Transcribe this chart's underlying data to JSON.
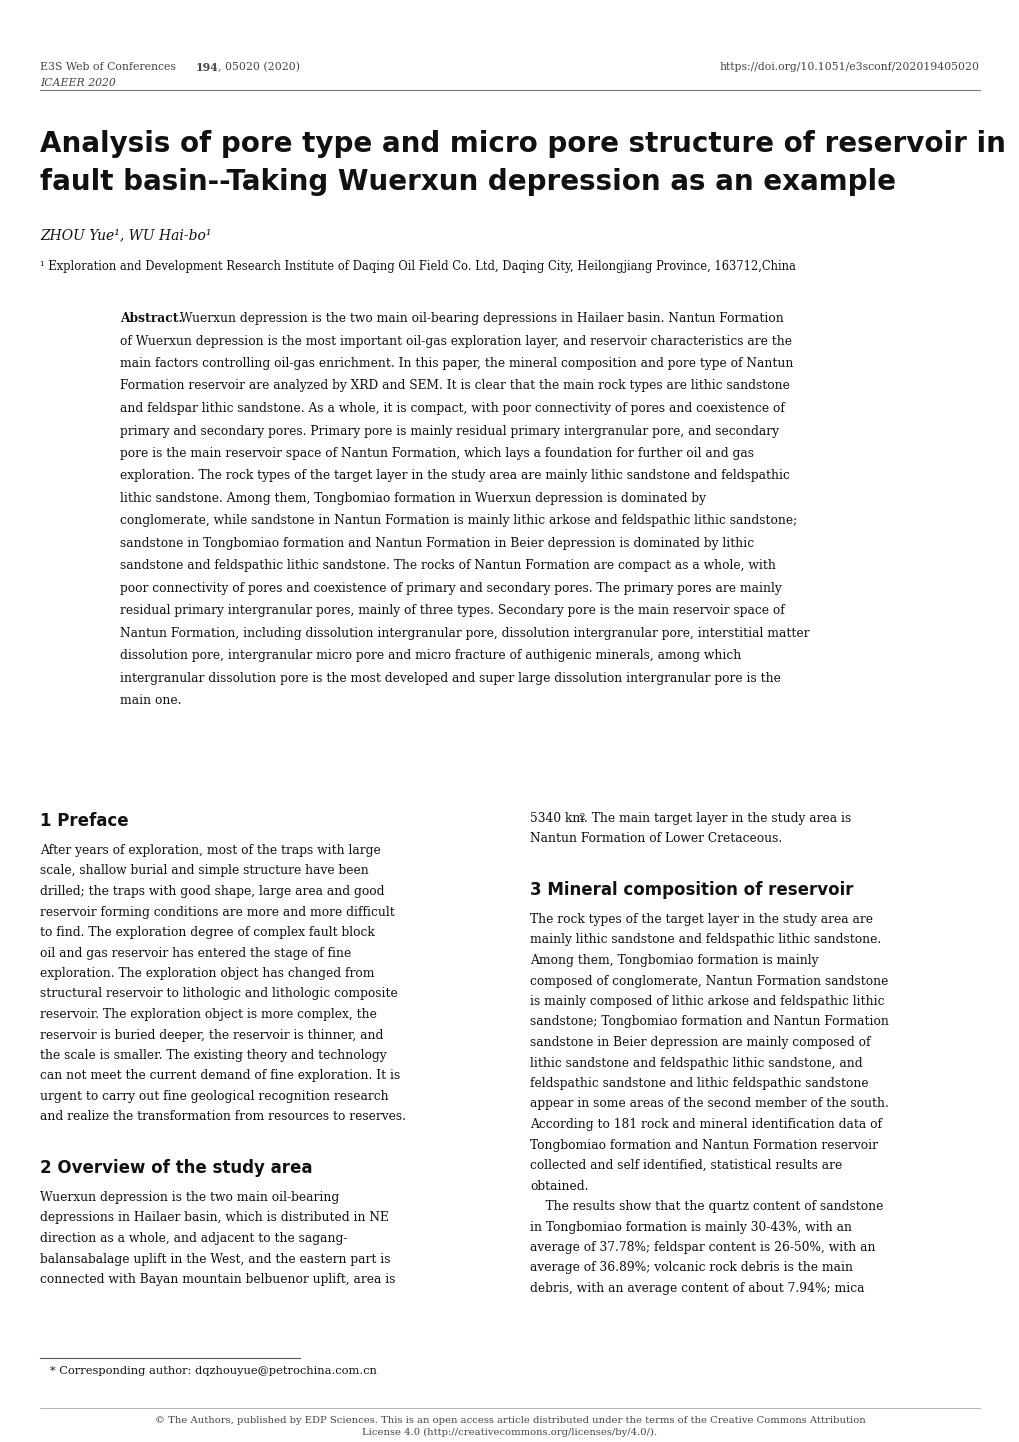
{
  "header_left1": "E3S Web of Conferences ",
  "header_left1_bold": "194",
  "header_left1_rest": ", 05020 (2020)",
  "header_left2": "ICAEER 2020",
  "header_right": "https://doi.org/10.1051/e3sconf/202019405020",
  "title_line1": "Analysis of pore type and micro pore structure of reservoir in",
  "title_line2": "fault basin--Taking Wuerxun depression as an example",
  "authors": "ZHOU Yue¹, WU Hai-bo¹",
  "affiliation": "¹ Exploration and Development Research Institute of Daqing Oil Field Co. Ltd, Daqing City, Heilongjiang Province, 163712,China",
  "abstract_lines": [
    "Abstract. Wuerxun depression is the two main oil-bearing depressions in Hailaer basin. Nantun Formation",
    "of Wuerxun depression is the most important oil-gas exploration layer, and reservoir characteristics are the",
    "main factors controlling oil-gas enrichment. In this paper, the mineral composition and pore type of Nantun",
    "Formation reservoir are analyzed by XRD and SEM. It is clear that the main rock types are lithic sandstone",
    "and feldspar lithic sandstone. As a whole, it is compact, with poor connectivity of pores and coexistence of",
    "primary and secondary pores. Primary pore is mainly residual primary intergranular pore, and secondary",
    "pore is the main reservoir space of Nantun Formation, which lays a foundation for further oil and gas",
    "exploration. The rock types of the target layer in the study area are mainly lithic sandstone and feldspathic",
    "lithic sandstone. Among them, Tongbomiao formation in Wuerxun depression is dominated by",
    "conglomerate, while sandstone in Nantun Formation is mainly lithic arkose and feldspathic lithic sandstone;",
    "sandstone in Tongbomiao formation and Nantun Formation in Beier depression is dominated by lithic",
    "sandstone and feldspathic lithic sandstone. The rocks of Nantun Formation are compact as a whole, with",
    "poor connectivity of pores and coexistence of primary and secondary pores. The primary pores are mainly",
    "residual primary intergranular pores, mainly of three types. Secondary pore is the main reservoir space of",
    "Nantun Formation, including dissolution intergranular pore, dissolution intergranular pore, interstitial matter",
    "dissolution pore, intergranular micro pore and micro fracture of authigenic minerals, among which",
    "intergranular dissolution pore is the most developed and super large dissolution intergranular pore is the",
    "main one."
  ],
  "sec1_title": "1 Preface",
  "sec1_lines": [
    "After years of exploration, most of the traps with large",
    "scale, shallow burial and simple structure have been",
    "drilled; the traps with good shape, large area and good",
    "reservoir forming conditions are more and more difficult",
    "to find. The exploration degree of complex fault block",
    "oil and gas reservoir has entered the stage of fine",
    "exploration. The exploration object has changed from",
    "structural reservoir to lithologic and lithologic composite",
    "reservoir. The exploration object is more complex, the",
    "reservoir is buried deeper, the reservoir is thinner, and",
    "the scale is smaller. The existing theory and technology",
    "can not meet the current demand of fine exploration. It is",
    "urgent to carry out fine geological recognition research",
    "and realize the transformation from resources to reserves."
  ],
  "sec2_title": "2 Overview of the study area",
  "sec2_lines": [
    "Wuerxun depression is the two main oil-bearing",
    "depressions in Hailaer basin, which is distributed in NE",
    "direction as a whole, and adjacent to the sagang-",
    "balansabalage uplift in the West, and the eastern part is",
    "connected with Bayan mountain belbuenor uplift, area is"
  ],
  "sec2_right_lines": [
    "5340 km². The main target layer in the study area is",
    "Nantun Formation of Lower Cretaceous."
  ],
  "sec3_title": "3 Mineral composition of reservoir",
  "sec3_lines": [
    "The rock types of the target layer in the study area are",
    "mainly lithic sandstone and feldspathic lithic sandstone.",
    "Among them, Tongbomiao formation is mainly",
    "composed of conglomerate, Nantun Formation sandstone",
    "is mainly composed of lithic arkose and feldspathic lithic",
    "sandstone; Tongbomiao formation and Nantun Formation",
    "sandstone in Beier depression are mainly composed of",
    "lithic sandstone and feldspathic lithic sandstone, and",
    "feldspathic sandstone and lithic feldspathic sandstone",
    "appear in some areas of the second member of the south.",
    "According to 181 rock and mineral identification data of",
    "Tongbomiao formation and Nantun Formation reservoir",
    "collected and self identified, statistical results are",
    "obtained.",
    "    The results show that the quartz content of sandstone",
    "in Tongbomiao formation is mainly 30-43%, with an",
    "average of 37.78%; feldspar content is 26-50%, with an",
    "average of 36.89%; volcanic rock debris is the main",
    "debris, with an average content of about 7.94%; mica"
  ],
  "footnote": "* Corresponding author: dqzhouyue@petrochina.com.cn",
  "footer_line1": "© The Authors, published by EDP Sciences. This is an open access article distributed under the terms of the Creative Commons Attribution",
  "footer_line2": "License 4.0 (http://creativecommons.org/licenses/by/4.0/)."
}
